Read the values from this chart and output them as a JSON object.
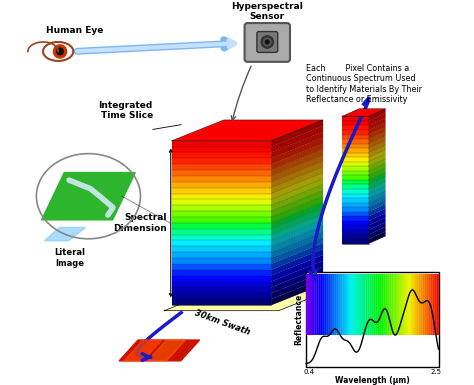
{
  "bg_color": "#f5f5f5",
  "labels": {
    "human_eye": "Human Eye",
    "sensor": "Hyperspectral\nSensor",
    "integrated_time_slice": "Integrated\nTime Slice",
    "spectral_dimension": "Spectral\nDimension",
    "swath": "30km Swath",
    "literal_image": "Literal\nImage",
    "each_pixel": "Each        Pixel Contains a\nContinuous Spectrum Used\nto Identify Materials By Their\nReflectance or Emissivity",
    "reflectance": "Reflectance",
    "wavelength": "Wavelength (μm)",
    "wl_start": "0.4",
    "wl_end": "2.5"
  },
  "cube_colors_bottom_to_top": [
    "#000077",
    "#000099",
    "#0000bb",
    "#0000dd",
    "#0000ff",
    "#0022ff",
    "#0055ff",
    "#0088ff",
    "#00aaff",
    "#00ccff",
    "#00eeff",
    "#00ffcc",
    "#00ff88",
    "#00ff44",
    "#44ff00",
    "#77ff00",
    "#aaff00",
    "#ddff00",
    "#ffee00",
    "#ffcc00",
    "#ffaa00",
    "#ff8800",
    "#ff6600",
    "#ff4400",
    "#ff2200",
    "#ff1100",
    "#ff0000",
    "#ee0000"
  ],
  "arrow_blue": "#1a1acc",
  "arrow_light_blue": "#88bbff"
}
